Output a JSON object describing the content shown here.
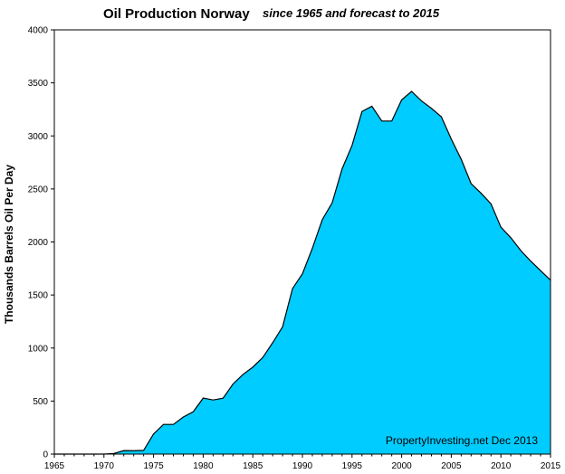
{
  "chart_data": {
    "type": "area",
    "title": "Oil Production Norway",
    "subtitle": "since 1965 and forecast to 2015",
    "xlabel": "",
    "ylabel": "Thousands Barrels Oil Per Day",
    "annotation": "PropertyInvesting.net  Dec 2013",
    "xlim": [
      1965,
      2015
    ],
    "ylim": [
      0,
      4000
    ],
    "x_ticks": [
      1965,
      1970,
      1975,
      1980,
      1985,
      1990,
      1995,
      2000,
      2005,
      2010,
      2015
    ],
    "y_ticks": [
      0,
      500,
      1000,
      1500,
      2000,
      2500,
      3000,
      3500,
      4000
    ],
    "grid": false,
    "fill_color": "#00ccff",
    "plot_background": "#ffffff",
    "series": [
      {
        "x": [
          1965,
          1966,
          1967,
          1968,
          1969,
          1970,
          1971,
          1972,
          1973,
          1974,
          1975,
          1976,
          1977,
          1978,
          1979,
          1980,
          1981,
          1982,
          1983,
          1984,
          1985,
          1986,
          1987,
          1988,
          1989,
          1990,
          1991,
          1992,
          1993,
          1994,
          1995,
          1996,
          1997,
          1998,
          1999,
          2000,
          2001,
          2002,
          2003,
          2004,
          2005,
          2006,
          2007,
          2008,
          2009,
          2010,
          2011,
          2012,
          2013,
          2014,
          2015
        ],
        "values": [
          0,
          0,
          0,
          0,
          0,
          0,
          6,
          33,
          32,
          35,
          190,
          280,
          280,
          350,
          400,
          528,
          510,
          527,
          660,
          750,
          820,
          910,
          1050,
          1200,
          1560,
          1700,
          1940,
          2210,
          2370,
          2690,
          2910,
          3230,
          3280,
          3140,
          3140,
          3340,
          3420,
          3330,
          3260,
          3180,
          2970,
          2780,
          2550,
          2460,
          2360,
          2140,
          2040,
          1920,
          1820,
          1730,
          1640
        ]
      }
    ]
  }
}
